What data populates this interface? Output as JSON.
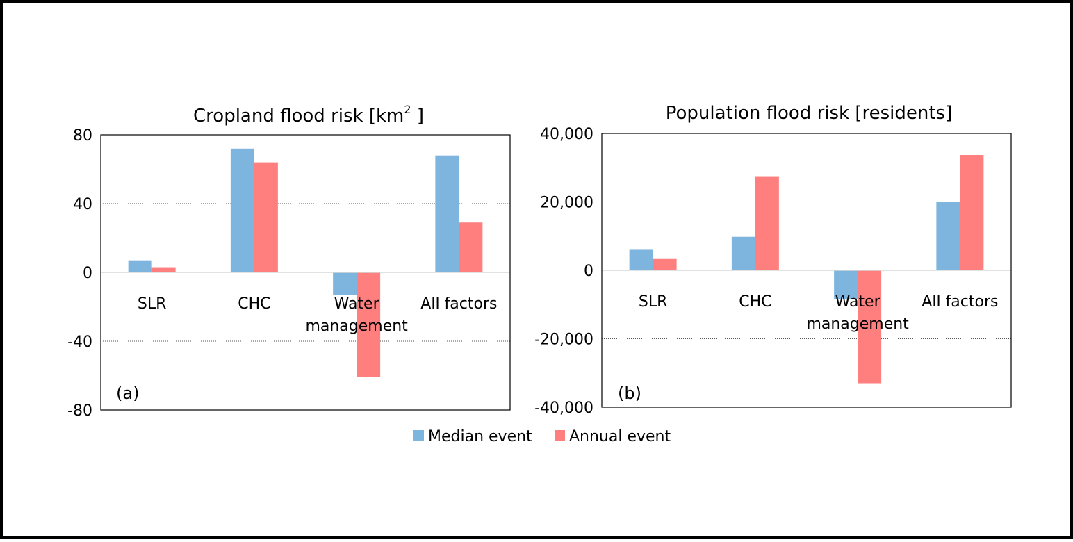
{
  "chart_data": [
    {
      "type": "bar",
      "title": "Cropland flood risk [km",
      "title_superscript": "2",
      "title_suffix": " ]",
      "panel_label": "(a)",
      "categories": [
        "SLR",
        "CHC",
        "Water management",
        "All factors"
      ],
      "category_lines": [
        [
          "SLR"
        ],
        [
          "CHC"
        ],
        [
          "Water",
          "management"
        ],
        [
          "All factors"
        ]
      ],
      "series": [
        {
          "name": "Median event",
          "color": "#7EB5DF",
          "values": [
            7,
            72,
            -13,
            68
          ]
        },
        {
          "name": "Annual event",
          "color": "#FF7F7F",
          "values": [
            3,
            64,
            -61,
            29
          ]
        }
      ],
      "ylim": [
        -80,
        80
      ],
      "yticks": [
        80,
        40,
        0,
        -40,
        -80
      ],
      "ytick_labels": [
        "80",
        "40",
        "0",
        "-40",
        "-80"
      ],
      "grid": "horizontal dotted"
    },
    {
      "type": "bar",
      "title": "Population flood risk [residents]",
      "panel_label": "(b)",
      "categories": [
        "SLR",
        "CHC",
        "Water management",
        "All factors"
      ],
      "category_lines": [
        [
          "SLR"
        ],
        [
          "CHC"
        ],
        [
          "Water",
          "management"
        ],
        [
          "All factors"
        ]
      ],
      "series": [
        {
          "name": "Median event",
          "color": "#7EB5DF",
          "values": [
            6000,
            9800,
            -8500,
            20000
          ]
        },
        {
          "name": "Annual event",
          "color": "#FF7F7F",
          "values": [
            3300,
            27300,
            -33000,
            33700
          ]
        }
      ],
      "ylim": [
        -40000,
        40000
      ],
      "yticks": [
        40000,
        20000,
        0,
        -20000,
        -40000
      ],
      "ytick_labels": [
        "40,000",
        "20,000",
        "0",
        "-20,000",
        "-40,000"
      ],
      "grid": "horizontal dotted"
    }
  ],
  "legend": {
    "placement": "bottom-center",
    "items": [
      {
        "label": "Median event",
        "color": "#7EB5DF"
      },
      {
        "label": "Annual event",
        "color": "#FF7F7F"
      }
    ]
  }
}
